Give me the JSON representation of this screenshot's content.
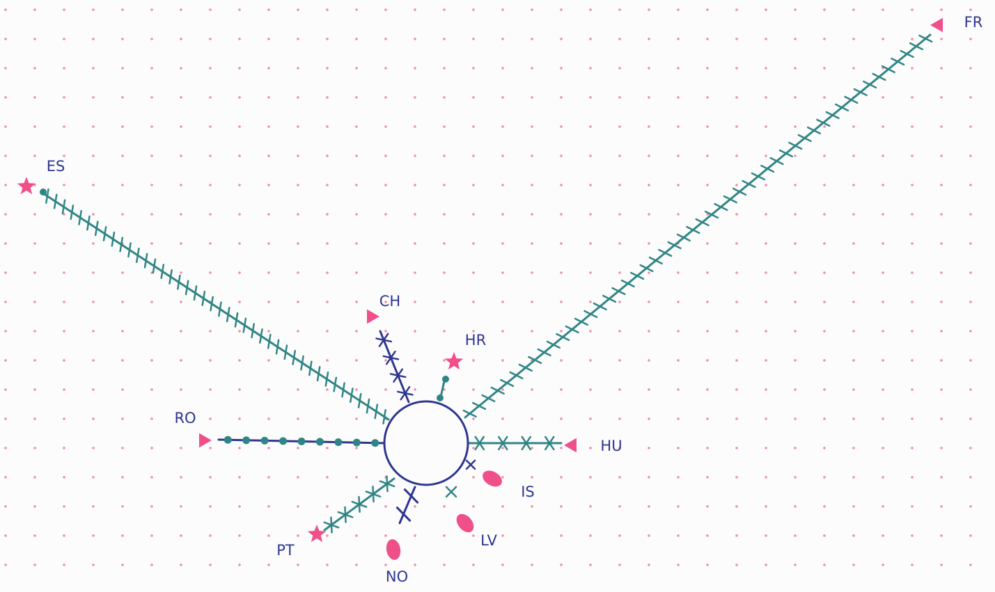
{
  "nodes": [
    {
      "label": "ES"
    },
    {
      "label": "FR"
    },
    {
      "label": "CH"
    },
    {
      "label": "HR"
    },
    {
      "label": "RO"
    },
    {
      "label": "HU"
    },
    {
      "label": "IS"
    },
    {
      "label": "LV"
    },
    {
      "label": "NO"
    },
    {
      "label": "PT"
    }
  ]
}
